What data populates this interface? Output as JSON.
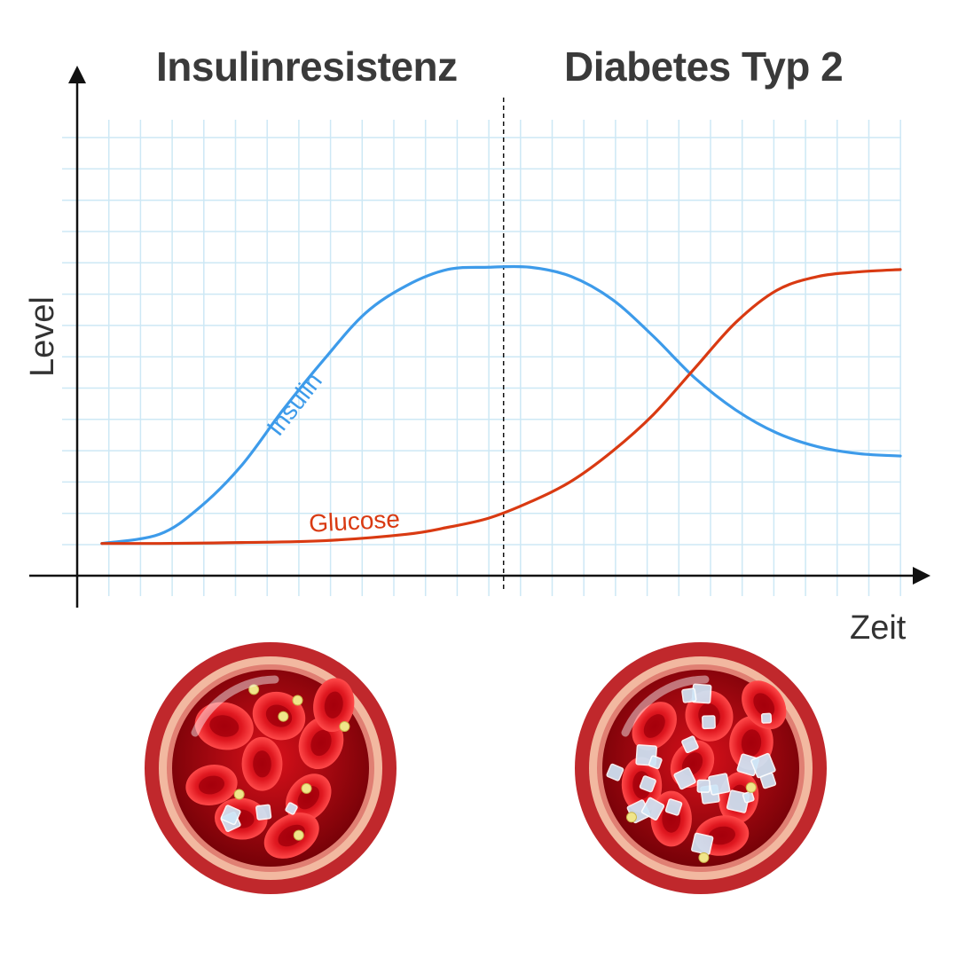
{
  "phases": {
    "left_title": "Insulinresistenz",
    "right_title": "Diabetes Typ 2"
  },
  "colors": {
    "insulin": "#3d9bea",
    "glucose": "#d93a12",
    "grid": "#cde8f5",
    "axis": "#111111",
    "vessel_outer": "#c0282c",
    "vessel_wall": "#f2b8a0",
    "blood": "#b5000a",
    "cell": "#e0141e",
    "glucose_crystal": "#cfe6f7",
    "insulin_dot": "#f0e58a"
  },
  "chart_data": {
    "type": "line",
    "xlabel": "Zeit",
    "ylabel": "Level",
    "xlim": [
      0,
      100
    ],
    "ylim": [
      0,
      100
    ],
    "grid": true,
    "divider_x": 51.8,
    "series": [
      {
        "name": "Insulin",
        "x": [
          3,
          10,
          15,
          20,
          25,
          30,
          35,
          40,
          45,
          50,
          55,
          60,
          65,
          70,
          75,
          80,
          85,
          90,
          95,
          100
        ],
        "y": [
          7,
          9,
          15,
          24,
          36,
          47,
          57,
          63,
          66.5,
          67,
          67,
          65,
          60,
          52,
          43,
          36,
          31,
          28,
          26.5,
          26
        ]
      },
      {
        "name": "Glucose",
        "x": [
          3,
          10,
          20,
          30,
          40,
          45,
          50,
          55,
          60,
          65,
          70,
          75,
          80,
          85,
          90,
          95,
          100
        ],
        "y": [
          7,
          7,
          7.2,
          7.6,
          9,
          10.5,
          12.5,
          16,
          20.5,
          27,
          35,
          45,
          55,
          62,
          65,
          66,
          66.5
        ]
      }
    ]
  },
  "illustrations": {
    "left": {
      "caption": "",
      "cells": 9,
      "crystals": 4,
      "dots": 7
    },
    "right": {
      "caption": "",
      "cells": 9,
      "crystals": 22,
      "dots": 3
    }
  }
}
